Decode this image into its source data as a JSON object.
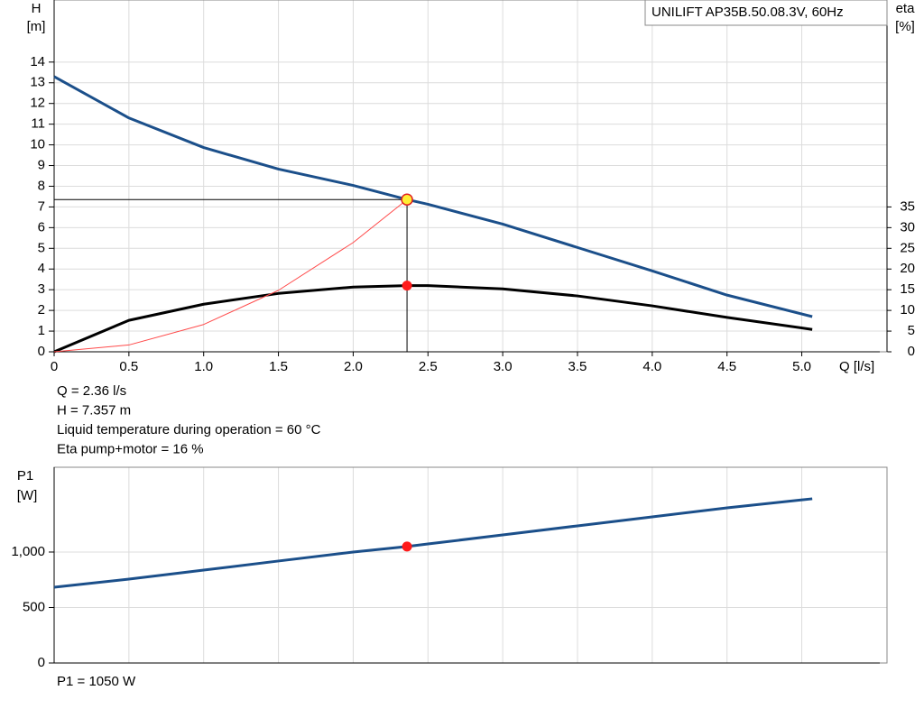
{
  "chart_data": [
    {
      "type": "line",
      "title": "UNILIFT AP35B.50.08.3V, 60Hz",
      "xlabel": "Q [l/s]",
      "ylabel": "H",
      "yunit": "[m]",
      "y2label": "eta",
      "y2unit": "[%]",
      "xlim": [
        0,
        5.57
      ],
      "xticks": [
        0,
        {
          "value": 0.5,
          "label": "0.5"
        },
        {
          "value": 1,
          "label": "1.0"
        },
        {
          "value": 1.5,
          "label": "1.5"
        },
        {
          "value": 2,
          "label": "2.0"
        },
        {
          "value": 2.5,
          "label": "2.5"
        },
        {
          "value": 3,
          "label": "3.0"
        },
        {
          "value": 3.5,
          "label": "3.5"
        },
        {
          "value": 4,
          "label": "4.0"
        },
        {
          "value": 4.5,
          "label": "4.5"
        },
        {
          "value": 5,
          "label": "5.0"
        }
      ],
      "ylim": [
        0,
        17
      ],
      "yticks": [
        0,
        1,
        2,
        3,
        4,
        5,
        6,
        7,
        8,
        9,
        10,
        11,
        12,
        13,
        14
      ],
      "y2lim": [
        0,
        85
      ],
      "y2ticks": [
        0,
        5,
        10,
        15,
        20,
        25,
        30,
        35
      ],
      "grid": true,
      "series": [
        {
          "color": "#1b4f8a",
          "width": 3,
          "x": [
            0,
            0.5,
            1,
            1.5,
            2,
            2.36,
            2.5,
            3,
            3.5,
            4,
            4.5,
            5.07
          ],
          "values": [
            13.3,
            11.3,
            9.87,
            8.83,
            8.04,
            7.357,
            7.13,
            6.17,
            5.04,
            3.91,
            2.74,
            1.7
          ]
        },
        {
          "color": "#000000",
          "width": 3,
          "axis": "y2",
          "x": [
            0,
            0.5,
            1,
            1.5,
            2,
            2.36,
            2.5,
            3,
            3.5,
            4,
            4.5,
            5.07
          ],
          "values": [
            0,
            7.6,
            11.5,
            14.1,
            15.65,
            16,
            16,
            15.2,
            13.5,
            11.1,
            8.3,
            5.4
          ]
        },
        {
          "color": "#ff4a4a",
          "width": 1,
          "x": [
            0,
            0.5,
            1,
            1.5,
            2,
            2.36
          ],
          "values": [
            0,
            0.33,
            1.32,
            2.97,
            5.28,
            7.357
          ]
        }
      ],
      "operating_point": {
        "x": 2.36,
        "y": 7.357,
        "y2": 16
      },
      "annotations": [
        "Q = 2.36 l/s",
        "H = 7.357 m",
        "Liquid temperature during operation = 60 °C",
        "Eta pump+motor = 16 %"
      ]
    },
    {
      "type": "line",
      "ylabel": "P1",
      "yunit": "[W]",
      "xlim": [
        0,
        5.57
      ],
      "ylim": [
        0,
        1764
      ],
      "yticks": [
        0,
        500,
        {
          "value": 1000,
          "label": "1,000"
        }
      ],
      "grid": true,
      "series": [
        {
          "color": "#1b4f8a",
          "width": 3,
          "x": [
            0,
            0.5,
            1,
            1.5,
            2,
            2.36,
            2.5,
            3,
            3.5,
            4,
            4.5,
            5.07
          ],
          "values": [
            683,
            756,
            837,
            919,
            1000,
            1050,
            1073,
            1154,
            1236,
            1317,
            1398,
            1480
          ]
        }
      ],
      "operating_point": {
        "x": 2.36,
        "y": 1050
      },
      "annotations": [
        "P1 = 1050 W"
      ]
    }
  ]
}
